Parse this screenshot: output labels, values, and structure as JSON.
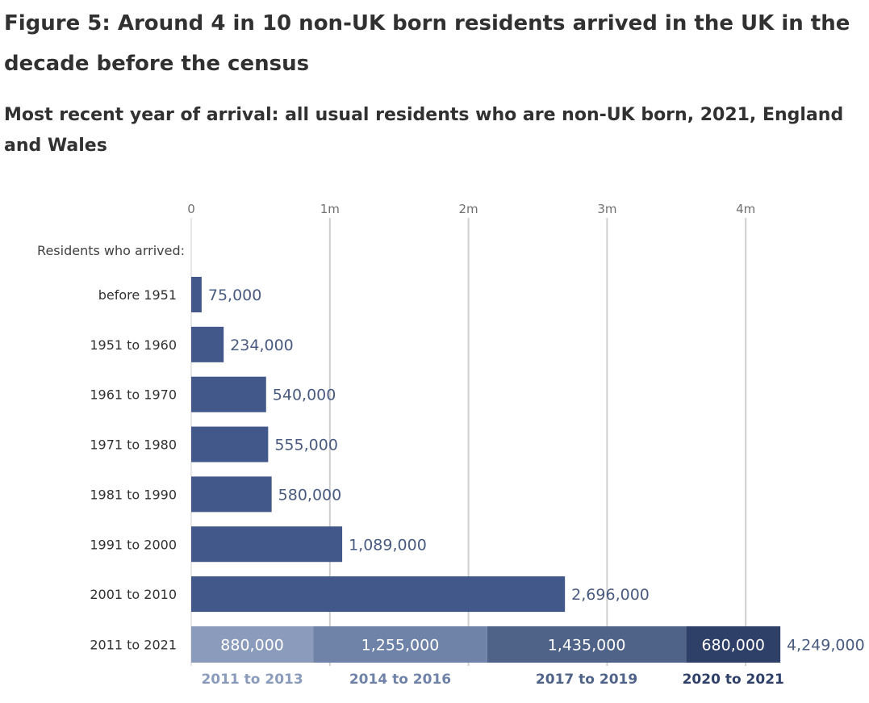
{
  "header": {
    "title": "Figure 5: Around 4 in 10 non-UK born residents arrived in the UK in the decade before the census",
    "subtitle": "Most recent year of arrival: all usual residents who are non-UK born, 2021, England and Wales"
  },
  "chart_data": {
    "type": "bar",
    "orientation": "horizontal",
    "title": "Figure 5: Around 4 in 10 non-UK born residents arrived in the UK in the decade before the census",
    "subtitle": "Most recent year of arrival: all usual residents who are non-UK born, 2021, England and Wales",
    "category_heading": "Residents who arrived:",
    "xlim": [
      0,
      4200000
    ],
    "x_ticks": [
      {
        "value": 0,
        "label": "0"
      },
      {
        "value": 1000000,
        "label": "1m"
      },
      {
        "value": 2000000,
        "label": "2m"
      },
      {
        "value": 3000000,
        "label": "3m"
      },
      {
        "value": 4000000,
        "label": "4m"
      }
    ],
    "grid": true,
    "bar_color": "#42578a",
    "categories": [
      "before 1951",
      "1951 to 1960",
      "1961 to 1970",
      "1971 to 1980",
      "1981 to 1990",
      "1991 to 2000",
      "2001 to 2010"
    ],
    "values": [
      75000,
      234000,
      540000,
      555000,
      580000,
      1089000,
      2696000
    ],
    "value_labels": [
      "75,000",
      "234,000",
      "540,000",
      "555,000",
      "580,000",
      "1,089,000",
      "2,696,000"
    ],
    "stacked_bar": {
      "category": "2011 to 2021",
      "total": 4249000,
      "total_label": "4,249,000",
      "segments": [
        {
          "name": "2011 to 2013",
          "value": 880000,
          "label": "880,000",
          "color": "#8a9bbb",
          "label_color": "#8a9bbb"
        },
        {
          "name": "2014 to 2016",
          "value": 1255000,
          "label": "1,255,000",
          "color": "#6f82a8",
          "label_color": "#6f82a8"
        },
        {
          "name": "2017 to 2019",
          "value": 1435000,
          "label": "1,435,000",
          "color": "#4f6288",
          "label_color": "#4f6288"
        },
        {
          "name": "2020 to 2021",
          "value": 680000,
          "label": "680,000",
          "color": "#2f4068",
          "label_color": "#2f4068"
        }
      ]
    }
  }
}
